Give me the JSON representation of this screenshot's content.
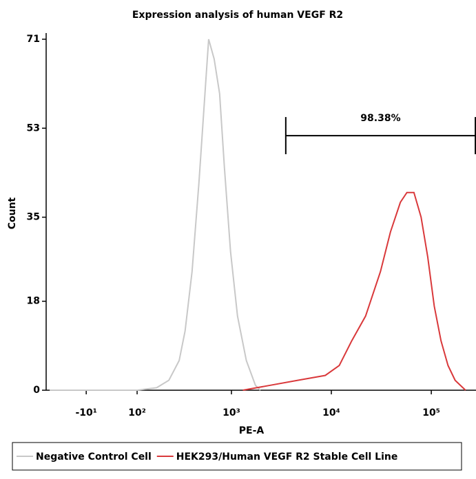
{
  "chart_data": {
    "type": "line",
    "title": "Expression analysis of human VEGF R2",
    "x_label": "PE-A",
    "y_label": "Count",
    "xscale": "biexponential",
    "xlim": [
      -100,
      280000
    ],
    "xticks": [
      {
        "value": -10,
        "label": "-10¹"
      },
      {
        "value": 100,
        "label": "10²"
      },
      {
        "value": 1000,
        "label": "10³"
      },
      {
        "value": 10000,
        "label": "10⁴"
      },
      {
        "value": 100000,
        "label": "10⁵"
      }
    ],
    "ylim": [
      0,
      71
    ],
    "yticks": [
      0,
      18,
      35,
      53,
      71
    ],
    "series": [
      {
        "name": "Negative Control Cell",
        "color": "#c8c8c8",
        "x": [
          -90,
          100,
          170,
          230,
          295,
          340,
          400,
          470,
          550,
          590,
          670,
          760,
          850,
          980,
          1150,
          1410,
          1740,
          1950
        ],
        "values": [
          0,
          0,
          0.5,
          2,
          6,
          12,
          24,
          42,
          62,
          71,
          67,
          60,
          45,
          28,
          15,
          6,
          1,
          0
        ]
      },
      {
        "name": "HEK293/Human VEGF R2 Stable Cell Line",
        "color": "#d9383a",
        "x": [
          1300,
          2450,
          4600,
          8700,
          12000,
          16000,
          22000,
          31000,
          39000,
          49000,
          57000,
          67000,
          79000,
          92000,
          107000,
          125000,
          147000,
          173000,
          220000
        ],
        "values": [
          0,
          1,
          2,
          3,
          5,
          10,
          15,
          24,
          32,
          38,
          40,
          40,
          35,
          27,
          17,
          10,
          5,
          2,
          0
        ]
      }
    ],
    "gate": {
      "label": "98.38%",
      "x": [
        3500,
        276000
      ],
      "y": 51.5
    }
  }
}
